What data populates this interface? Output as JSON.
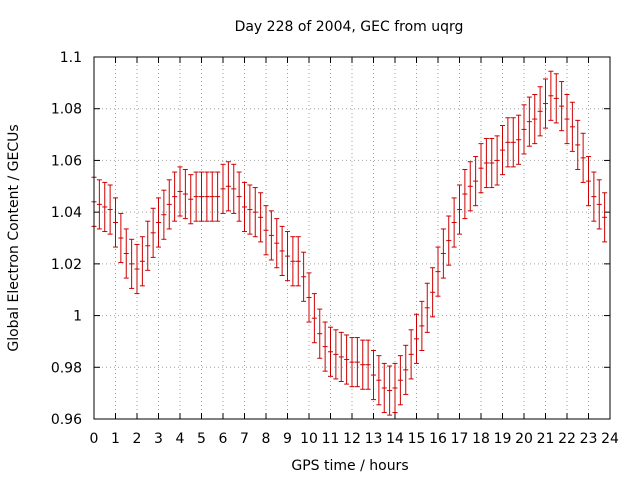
{
  "chart_data": {
    "type": "scatter",
    "title": "Day 228 of 2004, GEC from uqrg",
    "xlabel": "GPS time / hours",
    "ylabel": "Global Electron Content / GECUs",
    "xlim": [
      0,
      24
    ],
    "ylim": [
      0.96,
      1.1
    ],
    "xticks": [
      0,
      1,
      2,
      3,
      4,
      5,
      6,
      7,
      8,
      9,
      10,
      11,
      12,
      13,
      14,
      15,
      16,
      17,
      18,
      19,
      20,
      21,
      22,
      23,
      24
    ],
    "xtick_labels": [
      "0",
      "1",
      "2",
      "3",
      "4",
      "5",
      "6",
      "7",
      "8",
      "9",
      "10",
      "11",
      "12",
      "13",
      "14",
      "15",
      "16",
      "17",
      "18",
      "19",
      "20",
      "21",
      "22",
      "23",
      "24"
    ],
    "yticks": [
      0.96,
      0.98,
      1.0,
      1.02,
      1.04,
      1.06,
      1.08,
      1.1
    ],
    "ytick_labels": [
      "0.96",
      "0.98",
      "1",
      "1.02",
      "1.04",
      "1.06",
      "1.08",
      "1.1"
    ],
    "grid": true,
    "series_color": "#cc0000",
    "error_half_width": 0.0095,
    "series": [
      {
        "x": [
          0.0,
          0.25,
          0.5,
          0.75,
          1.0,
          1.25,
          1.5,
          1.75,
          2.0,
          2.25,
          2.5,
          2.75,
          3.0,
          3.25,
          3.5,
          3.75,
          4.0,
          4.25,
          4.5,
          4.75,
          5.0,
          5.25,
          5.5,
          5.75,
          6.0,
          6.25,
          6.5,
          6.75,
          7.0,
          7.25,
          7.5,
          7.75,
          8.0,
          8.25,
          8.5,
          8.75,
          9.0,
          9.25,
          9.5,
          9.75,
          10.0,
          10.25,
          10.5,
          10.75,
          11.0,
          11.25,
          11.5,
          11.75,
          12.0,
          12.25,
          12.5,
          12.75,
          13.0,
          13.25,
          13.5,
          13.75,
          14.0,
          14.25,
          14.5,
          14.75,
          15.0,
          15.25,
          15.5,
          15.75,
          16.0,
          16.25,
          16.5,
          16.75,
          17.0,
          17.25,
          17.5,
          17.75,
          18.0,
          18.25,
          18.5,
          18.75,
          19.0,
          19.25,
          19.5,
          19.75,
          20.0,
          20.25,
          20.5,
          20.75,
          21.0,
          21.25,
          21.5,
          21.75,
          22.0,
          22.25,
          22.5,
          22.75,
          23.0,
          23.25,
          23.5,
          23.75
        ],
        "y": [
          1.044,
          1.043,
          1.042,
          1.041,
          1.036,
          1.03,
          1.024,
          1.02,
          1.018,
          1.021,
          1.027,
          1.032,
          1.036,
          1.039,
          1.043,
          1.046,
          1.048,
          1.047,
          1.045,
          1.046,
          1.046,
          1.046,
          1.046,
          1.046,
          1.049,
          1.05,
          1.049,
          1.046,
          1.042,
          1.041,
          1.04,
          1.038,
          1.033,
          1.031,
          1.028,
          1.025,
          1.023,
          1.021,
          1.021,
          1.015,
          1.007,
          0.999,
          0.993,
          0.988,
          0.986,
          0.985,
          0.984,
          0.983,
          0.982,
          0.982,
          0.981,
          0.981,
          0.977,
          0.975,
          0.972,
          0.971,
          0.972,
          0.975,
          0.979,
          0.985,
          0.991,
          0.996,
          1.003,
          1.009,
          1.017,
          1.024,
          1.029,
          1.036,
          1.041,
          1.047,
          1.05,
          1.052,
          1.057,
          1.059,
          1.059,
          1.06,
          1.064,
          1.067,
          1.067,
          1.068,
          1.072,
          1.075,
          1.076,
          1.079,
          1.082,
          1.085,
          1.084,
          1.081,
          1.076,
          1.073,
          1.066,
          1.061,
          1.052,
          1.046,
          1.043,
          1.038
        ]
      }
    ]
  }
}
